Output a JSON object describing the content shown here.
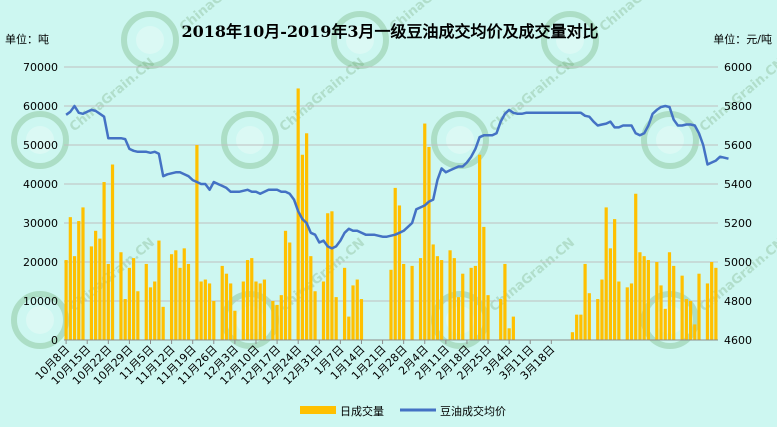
{
  "chart_data": {
    "type": "bar+line",
    "title": "2018年10月-2019年3月一级豆油成交均价及成交量对比",
    "left_axis_label": "单位：吨",
    "right_axis_label": "单位：元/吨",
    "left_ylim": [
      0,
      70000
    ],
    "left_ticks": [
      "0",
      "10000",
      "20000",
      "30000",
      "40000",
      "50000",
      "60000",
      "70000"
    ],
    "right_ylim": [
      4600,
      6000
    ],
    "right_ticks": [
      "4600",
      "4800",
      "5000",
      "5200",
      "5400",
      "5600",
      "5800",
      "6000"
    ],
    "x_tick_labels": [
      "10月8日",
      "10月15日",
      "10月22日",
      "10月29日",
      "11月5日",
      "11月12日",
      "11月19日",
      "11月26日",
      "12月3日",
      "12月10日",
      "12月17日",
      "12月24日",
      "12月31日",
      "1月7日",
      "1月14日",
      "1月21日",
      "1月28日",
      "2月4日",
      "2月11日",
      "2月18日",
      "2月25日",
      "3月4日",
      "3月11日",
      "3月18日"
    ],
    "grid": true,
    "legend_position": "bottom",
    "watermark_text": "ChinaGrain.CN",
    "series": [
      {
        "name": "日成交量",
        "kind": "bar",
        "axis": "left",
        "color": "#ffc000",
        "values": [
          20500,
          31500,
          21500,
          30500,
          34000,
          0,
          24000,
          28000,
          26000,
          40500,
          19500,
          45000,
          0,
          22500,
          10500,
          18500,
          21000,
          12500,
          0,
          19500,
          13500,
          15000,
          25500,
          8500,
          0,
          22000,
          23000,
          18500,
          23500,
          19500,
          0,
          50000,
          15000,
          15500,
          14500,
          10000,
          0,
          19000,
          17000,
          14500,
          7500,
          0,
          15000,
          20500,
          21000,
          15000,
          14500,
          15500,
          0,
          10000,
          9000,
          11500,
          28000,
          25000,
          0,
          64500,
          47500,
          53000,
          21500,
          12500,
          0,
          15000,
          32500,
          33000,
          11000,
          0,
          18500,
          6000,
          14000,
          15500,
          10500,
          0,
          0,
          0,
          0,
          0,
          0,
          18000,
          39000,
          34500,
          19500,
          0,
          19000,
          0,
          21000,
          55500,
          49500,
          24500,
          21500,
          20500,
          0,
          23000,
          21000,
          11000,
          17000,
          0,
          18500,
          19000,
          47500,
          29000,
          11500,
          0,
          0,
          10500,
          19500,
          3000,
          6000,
          0,
          0,
          0,
          0,
          0,
          0,
          0,
          0,
          0,
          0,
          0,
          0,
          0,
          2000,
          6500,
          6500,
          19500,
          12000,
          0,
          10500,
          15500,
          34000,
          23500,
          31000,
          15000,
          0,
          13500,
          14500,
          37500,
          22500,
          21500,
          20500,
          0,
          20000,
          14000,
          8000,
          22500,
          19000,
          0,
          16500,
          10500,
          10000,
          4000,
          17000,
          0,
          14500,
          20000,
          18500
        ]
      },
      {
        "name": "豆油成交均价",
        "kind": "line",
        "axis": "right",
        "color": "#4472c4",
        "values": [
          5755,
          5770,
          5800,
          5765,
          5760,
          5770,
          5780,
          5775,
          5760,
          5745,
          5635,
          5635,
          5635,
          5635,
          5630,
          5580,
          5570,
          5565,
          5565,
          5565,
          5560,
          5565,
          5555,
          5440,
          5450,
          5455,
          5460,
          5460,
          5450,
          5440,
          5420,
          5410,
          5400,
          5400,
          5370,
          5410,
          5400,
          5390,
          5380,
          5360,
          5360,
          5360,
          5365,
          5370,
          5360,
          5360,
          5350,
          5360,
          5370,
          5370,
          5370,
          5360,
          5360,
          5350,
          5320,
          5260,
          5220,
          5200,
          5150,
          5140,
          5100,
          5110,
          5080,
          5070,
          5080,
          5110,
          5150,
          5170,
          5160,
          5160,
          5150,
          5140,
          5140,
          5140,
          5135,
          5130,
          5130,
          5135,
          5140,
          5150,
          5160,
          5180,
          5200,
          5270,
          5280,
          5290,
          5310,
          5320,
          5420,
          5480,
          5460,
          5470,
          5480,
          5490,
          5490,
          5510,
          5540,
          5580,
          5640,
          5650,
          5650,
          5650,
          5660,
          5720,
          5760,
          5780,
          5765,
          5760,
          5760,
          5765,
          5765,
          5765,
          5765,
          5765,
          5765,
          5765,
          5765,
          5765,
          5765,
          5765,
          5765,
          5765,
          5765,
          5750,
          5745,
          5720,
          5700,
          5705,
          5710,
          5720,
          5690,
          5690,
          5700,
          5700,
          5700,
          5660,
          5650,
          5660,
          5700,
          5760,
          5780,
          5795,
          5800,
          5795,
          5730,
          5700,
          5700,
          5705,
          5705,
          5700,
          5660,
          5600,
          5500,
          5510,
          5520,
          5540,
          5535,
          5530
        ]
      }
    ]
  }
}
